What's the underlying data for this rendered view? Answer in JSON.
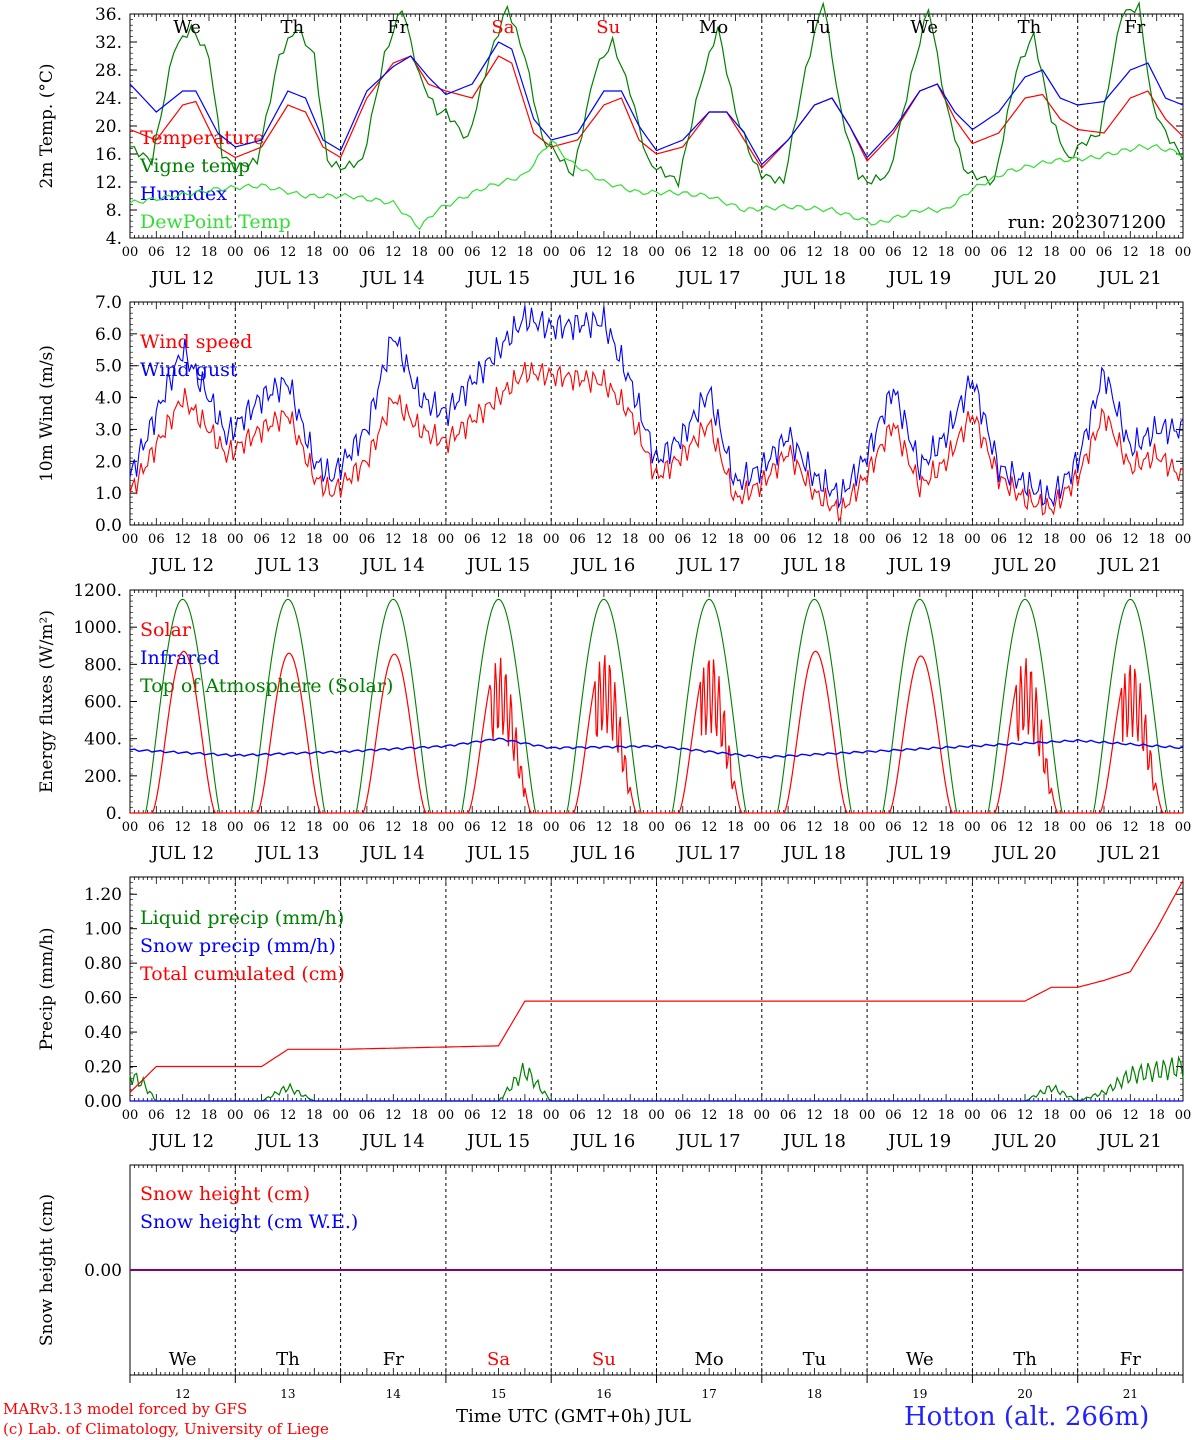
{
  "run_label": "run: 2023071200",
  "footer": {
    "model_line": "MARv3.13 model forced by GFS",
    "credit_line": "(c) Lab. of Climatology, University of Liege",
    "station": "Hotton (alt. 266m)",
    "time_axis_label": "Time UTC (GMT+0h) JUL"
  },
  "colors": {
    "red": "#ff0000",
    "green": "#008000",
    "blue": "#0000ff",
    "lightgreen": "#33dd33",
    "purple": "#800080"
  },
  "days": {
    "weekday_labels": [
      "We",
      "Th",
      "Fr",
      "Sa",
      "Su",
      "Mo",
      "Tu",
      "We",
      "Th",
      "Fr"
    ],
    "weekend_flags": [
      false,
      false,
      false,
      true,
      true,
      false,
      false,
      false,
      false,
      false
    ],
    "date_labels": [
      "JUL 12",
      "JUL 13",
      "JUL 14",
      "JUL 15",
      "JUL 16",
      "JUL 17",
      "JUL 18",
      "JUL 19",
      "JUL 20",
      "JUL 21"
    ],
    "day_numbers": [
      "12",
      "13",
      "14",
      "15",
      "16",
      "17",
      "18",
      "19",
      "20",
      "21"
    ],
    "hour_ticks": [
      "00",
      "06",
      "12",
      "18"
    ],
    "final_hour_tick": "00"
  },
  "chart_data": [
    {
      "id": "temperature",
      "type": "line",
      "ylabel": "2m Temp. (°C)",
      "ylim": [
        4,
        36
      ],
      "yticks": [
        "4.",
        "8.",
        "12.",
        "16.",
        "20.",
        "24.",
        "28.",
        "32.",
        "36."
      ],
      "grid": "vertical dashed at midnight",
      "legend_placement": "left",
      "x_unit": "hours since 2023-07-12 00 UTC",
      "series": [
        {
          "name": "Temperature",
          "color": "red",
          "x": [
            0,
            6,
            12,
            15,
            20,
            24,
            30,
            36,
            40,
            44,
            48,
            54,
            60,
            64,
            68,
            72,
            78,
            84,
            87,
            92,
            96,
            102,
            108,
            112,
            116,
            120,
            126,
            132,
            136,
            140,
            144,
            150,
            156,
            160,
            164,
            168,
            174,
            180,
            184,
            188,
            192,
            198,
            204,
            208,
            212,
            216,
            222,
            228,
            232,
            236,
            240
          ],
          "values": [
            19.5,
            18,
            23,
            23.5,
            17,
            15.5,
            17,
            23,
            22,
            17,
            15.5,
            24,
            29,
            30,
            26,
            25,
            24,
            30,
            29,
            19,
            17,
            18,
            23,
            24,
            18,
            16,
            17,
            22,
            22,
            18,
            14,
            18,
            23,
            24,
            20,
            15,
            19,
            25,
            26,
            21,
            17.5,
            19,
            24,
            24.5,
            21,
            19.5,
            19,
            24,
            25,
            21,
            18.5
          ]
        },
        {
          "name": "Vigne temp",
          "color": "green",
          "x": [
            0,
            5,
            10,
            14,
            18,
            21,
            24,
            29,
            34,
            38,
            42,
            45,
            48,
            53,
            58,
            62,
            66,
            70,
            72,
            77,
            82,
            86,
            90,
            94,
            96,
            101,
            106,
            110,
            114,
            118,
            120,
            125,
            130,
            134,
            138,
            142,
            144,
            149,
            154,
            158,
            162,
            166,
            168,
            173,
            178,
            182,
            186,
            190,
            192,
            197,
            202,
            206,
            210,
            214,
            216,
            221,
            226,
            230,
            233,
            236,
            240
          ],
          "values": [
            17,
            15,
            31,
            34,
            30,
            16,
            14,
            15,
            30,
            34,
            30,
            15,
            14,
            15,
            30,
            37,
            27,
            22,
            22,
            18,
            30,
            37,
            30,
            18,
            17,
            13,
            28,
            32,
            25,
            15,
            14,
            12,
            26,
            34,
            22,
            15,
            13,
            12,
            28,
            38,
            22,
            13,
            12,
            13,
            27,
            37,
            23,
            14,
            13,
            12,
            28,
            33,
            21,
            15,
            17,
            19,
            36,
            37,
            23,
            19,
            15.5
          ]
        },
        {
          "name": "Humidex",
          "color": "blue",
          "x": [
            0,
            6,
            12,
            15,
            20,
            24,
            30,
            36,
            40,
            44,
            48,
            54,
            60,
            64,
            68,
            72,
            78,
            84,
            87,
            92,
            96,
            102,
            108,
            112,
            116,
            120,
            126,
            132,
            136,
            140,
            144,
            150,
            156,
            160,
            164,
            168,
            174,
            180,
            184,
            188,
            192,
            198,
            204,
            208,
            212,
            216,
            222,
            228,
            232,
            236,
            240
          ],
          "values": [
            26,
            22,
            25,
            25,
            19,
            17,
            18,
            25,
            24,
            18,
            16.5,
            25,
            28.5,
            30,
            27,
            24.5,
            26,
            32,
            31,
            21,
            18,
            19,
            25,
            25,
            20,
            16.5,
            18,
            22,
            22,
            19,
            14.5,
            18,
            23,
            24,
            20,
            15.5,
            19.5,
            25,
            26,
            22,
            19.5,
            22,
            27,
            28,
            24,
            23,
            23.5,
            28,
            29,
            24,
            23
          ]
        },
        {
          "name": "DewPoint Temp",
          "color": "lightgreen",
          "x": [
            0,
            10,
            20,
            30,
            40,
            50,
            60,
            66,
            70,
            80,
            90,
            96,
            100,
            108,
            116,
            124,
            132,
            140,
            150,
            160,
            170,
            180,
            186,
            192,
            200,
            210,
            220,
            230,
            234,
            240
          ],
          "values": [
            9,
            10,
            11,
            11.5,
            10,
            10,
            9,
            5.5,
            8,
            11,
            13,
            18,
            15,
            12,
            10.5,
            10.5,
            10,
            8,
            8.5,
            8,
            6,
            8,
            8,
            11,
            13.5,
            15,
            15.5,
            17,
            17,
            16
          ]
        }
      ]
    },
    {
      "id": "wind",
      "type": "line",
      "ylabel": "10m Wind (m/s)",
      "ylim": [
        0,
        7
      ],
      "yticks": [
        "0.0",
        "1.0",
        "2.0",
        "3.0",
        "4.0",
        "5.0",
        "6.0",
        "7.0"
      ],
      "reference_line": 5.0,
      "legend_placement": "left",
      "x_unit": "hours since 2023-07-12 00 UTC",
      "series": [
        {
          "name": "Wind speed",
          "color": "red",
          "x": [
            0,
            6,
            12,
            18,
            22,
            30,
            36,
            42,
            46,
            54,
            60,
            66,
            72,
            84,
            90,
            96,
            108,
            114,
            120,
            126,
            132,
            138,
            144,
            150,
            156,
            162,
            168,
            174,
            180,
            186,
            192,
            198,
            204,
            210,
            216,
            222,
            228,
            234,
            240
          ],
          "values": [
            1.0,
            2.5,
            4.0,
            3.0,
            2.2,
            3.0,
            3.5,
            1.5,
            1.0,
            2.0,
            4.0,
            3.0,
            2.6,
            4.0,
            4.8,
            4.7,
            4.5,
            3.5,
            1.5,
            2.2,
            3.2,
            0.8,
            1.3,
            2.3,
            1.0,
            0.4,
            1.6,
            3.2,
            1.2,
            2.0,
            3.5,
            1.5,
            0.8,
            0.5,
            1.5,
            3.5,
            1.8,
            2.2,
            1.5
          ]
        },
        {
          "name": "Wind gust",
          "color": "blue",
          "x": [
            0,
            6,
            12,
            18,
            22,
            30,
            36,
            42,
            46,
            54,
            60,
            66,
            72,
            84,
            90,
            96,
            108,
            114,
            120,
            126,
            132,
            138,
            144,
            150,
            156,
            162,
            168,
            174,
            180,
            186,
            192,
            198,
            204,
            210,
            216,
            222,
            228,
            234,
            240
          ],
          "values": [
            1.5,
            3.5,
            5.5,
            4.0,
            2.8,
            4.0,
            4.5,
            2.0,
            1.5,
            3.0,
            6.0,
            4.0,
            3.5,
            5.5,
            6.5,
            6.2,
            6.4,
            4.5,
            2.0,
            2.8,
            4.2,
            1.3,
            1.8,
            2.8,
            1.5,
            0.9,
            2.2,
            4.3,
            1.8,
            2.8,
            4.6,
            1.8,
            1.3,
            0.8,
            2.0,
            4.8,
            2.4,
            3.0,
            3.0
          ]
        }
      ]
    },
    {
      "id": "energy",
      "type": "line",
      "ylabel": "Energy fluxes (W/m²)",
      "ylim": [
        0,
        1200
      ],
      "yticks": [
        "0.",
        "200.",
        "400.",
        "600.",
        "800.",
        "1000.",
        "1200."
      ],
      "legend_placement": "left",
      "x_unit": "hours since 2023-07-12 00 UTC",
      "series": [
        {
          "name": "Solar",
          "color": "red",
          "daily_peak_values": [
            870,
            860,
            855,
            840,
            865,
            860,
            870,
            845,
            840,
            820
          ]
        },
        {
          "name": "Infrared",
          "color": "blue",
          "x": [
            0,
            24,
            48,
            72,
            84,
            96,
            120,
            144,
            168,
            192,
            216,
            240
          ],
          "values": [
            340,
            310,
            330,
            360,
            400,
            350,
            360,
            300,
            330,
            360,
            390,
            350
          ]
        },
        {
          "name": "Top of Atmosphere (Solar)",
          "color": "green",
          "daily_peak_value": 1150
        }
      ]
    },
    {
      "id": "precip",
      "type": "line",
      "ylabel": "Precip (mm/h)",
      "ylim": [
        0,
        1.3
      ],
      "yticks": [
        "0.00",
        "0.20",
        "0.40",
        "0.60",
        "0.80",
        "1.00",
        "1.20"
      ],
      "legend_placement": "left",
      "x_unit": "hours since 2023-07-12 00 UTC",
      "series": [
        {
          "name": "Liquid precip (mm/h)",
          "color": "green",
          "x": [
            0,
            3,
            6,
            9,
            30,
            36,
            42,
            84,
            90,
            96,
            204,
            210,
            216,
            222,
            228,
            240
          ],
          "values": [
            0.15,
            0.1,
            0.0,
            0.0,
            0.0,
            0.08,
            0.0,
            0.0,
            0.18,
            0.0,
            0.0,
            0.08,
            0.0,
            0.05,
            0.15,
            0.2
          ]
        },
        {
          "name": "Snow precip (mm/h)",
          "color": "blue",
          "x": [
            0,
            240
          ],
          "values": [
            0,
            0
          ]
        },
        {
          "name": "Total cumulated (cm)",
          "color": "red",
          "x": [
            0,
            6,
            30,
            36,
            48,
            84,
            90,
            96,
            204,
            210,
            216,
            222,
            228,
            234,
            240
          ],
          "values": [
            0.05,
            0.2,
            0.2,
            0.3,
            0.3,
            0.32,
            0.58,
            0.58,
            0.58,
            0.66,
            0.66,
            0.7,
            0.75,
            1.0,
            1.28
          ]
        }
      ]
    },
    {
      "id": "snow",
      "type": "line",
      "ylabel": "Snow height (cm)",
      "yticks": [
        "0.00"
      ],
      "legend_placement": "left",
      "x_unit": "hours since 2023-07-12 00 UTC",
      "series": [
        {
          "name": "Snow height (cm)",
          "color": "red",
          "x": [
            0,
            240
          ],
          "values": [
            0,
            0
          ]
        },
        {
          "name": "Snow height (cm W.E.)",
          "color": "blue",
          "x": [
            0,
            240
          ],
          "values": [
            0,
            0
          ]
        }
      ]
    }
  ]
}
